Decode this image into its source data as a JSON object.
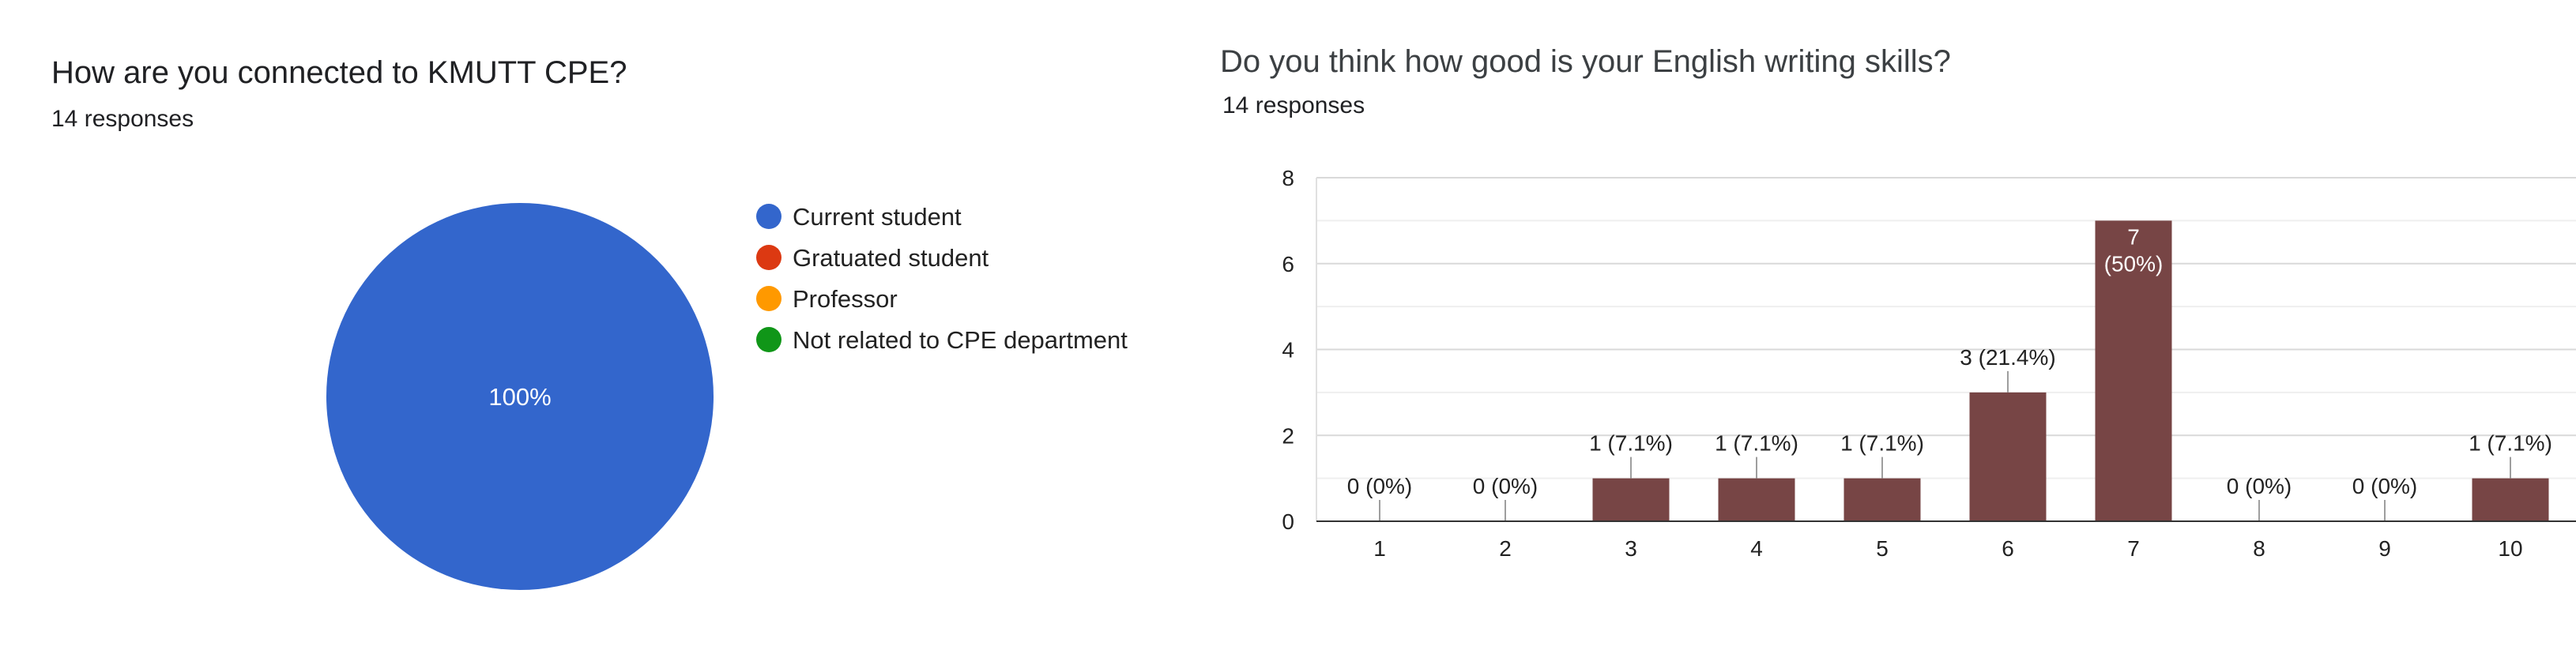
{
  "pie": {
    "title": "How are you connected to KMUTT CPE?",
    "subtitle": "14 responses"
  },
  "bar": {
    "title": "Do you think how good is your English writing skills?",
    "subtitle": "14 responses"
  },
  "chart_data": [
    {
      "type": "pie",
      "title": "How are you connected to KMUTT CPE?",
      "legend_position": "right",
      "slices": [
        {
          "label": "Current student",
          "value": 100,
          "color": "#3366cc"
        },
        {
          "label": "Gratuated student",
          "value": 0,
          "color": "#dc3912"
        },
        {
          "label": "Professor",
          "value": 0,
          "color": "#ff9900"
        },
        {
          "label": "Not related to CPE department",
          "value": 0,
          "color": "#109618"
        }
      ],
      "slice_labels": [
        "100%"
      ]
    },
    {
      "type": "bar",
      "title": "Do you think how good is your English writing skills?",
      "categories": [
        "1",
        "2",
        "3",
        "4",
        "5",
        "6",
        "7",
        "8",
        "9",
        "10"
      ],
      "values": [
        0,
        0,
        1,
        1,
        1,
        3,
        7,
        0,
        0,
        1
      ],
      "data_labels": [
        "0 (0%)",
        "0 (0%)",
        "1 (7.1%)",
        "1 (7.1%)",
        "1 (7.1%)",
        "3 (21.4%)",
        "7\n(50%)",
        "0 (0%)",
        "0 (0%)",
        "1 (7.1%)"
      ],
      "ylim": [
        0,
        8
      ],
      "yticks": [
        "0",
        "2",
        "4",
        "6",
        "8"
      ],
      "grid": true,
      "bar_color": "#774545"
    }
  ]
}
